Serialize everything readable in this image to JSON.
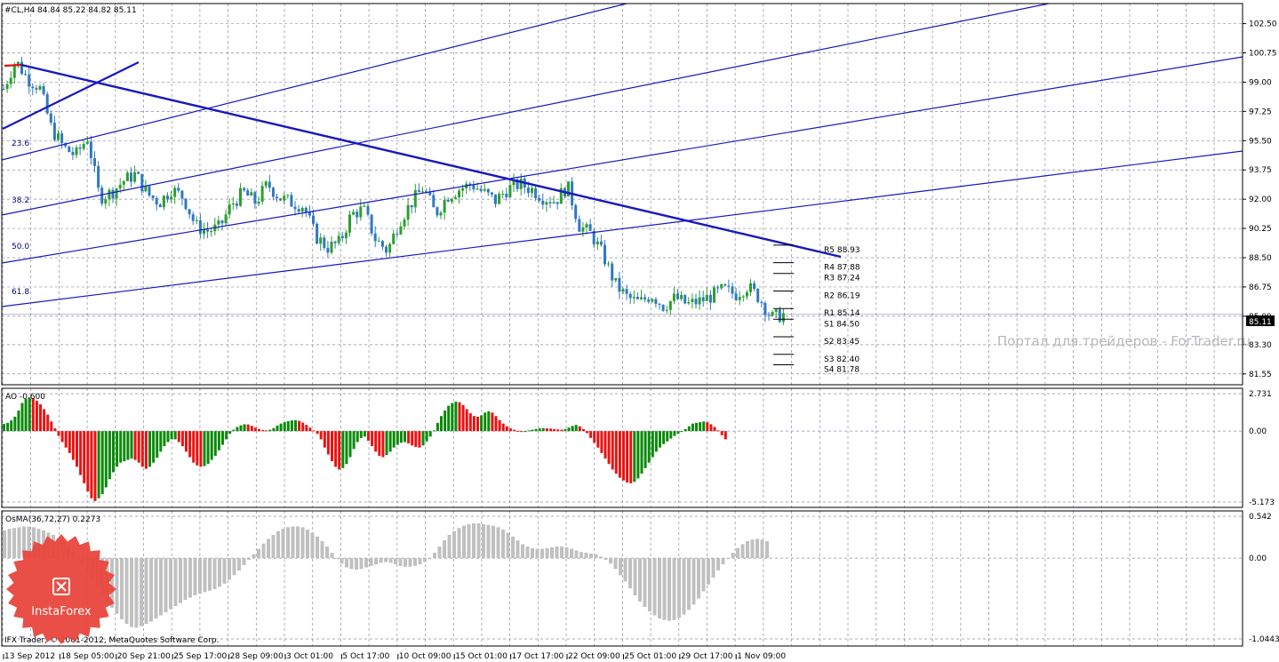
{
  "header": {
    "symbol_label": "#CL,H4  84.84 85.22 84.82 85.11",
    "ao_label": "AO -0.600",
    "osma_label": "OsMA(36,72,27) 0.2273",
    "copyright": "IFX Trader,  © 2001-2012, MetaQuotes Software Corp.",
    "watermark": "Портал для трейдеров - ForTrader.ru",
    "logo_text": "InstaForex"
  },
  "colors": {
    "grid": "#8a8aa8",
    "bull": "#2e9e2e",
    "bear": "#2f78c4",
    "trend": "#1818c0",
    "up_bar": "#0a8a0a",
    "down_bar": "#ee1010",
    "osma": "#c0c0c0",
    "logo": "#e8463c"
  },
  "chart_data": [
    {
      "type": "candlestick",
      "title": "#CL,H4",
      "ohlc_current": {
        "open": 84.84,
        "high": 85.22,
        "low": 84.82,
        "close": 85.11
      },
      "current_price_label": "85.11",
      "y_ticks": [
        "102.50",
        "100.75",
        "99.00",
        "97.25",
        "95.50",
        "93.75",
        "92.00",
        "90.25",
        "88.50",
        "86.75",
        "85.00",
        "83.30",
        "81.55"
      ],
      "x_ticks": [
        "13 Sep 2012",
        "18 Sep 05:00",
        "20 Sep 21:00",
        "25 Sep 17:00",
        "28 Sep 09:00",
        "3 Oct 01:00",
        "5 Oct 17:00",
        "10 Oct 09:00",
        "15 Oct 01:00",
        "17 Oct 17:00",
        "22 Oct 09:00",
        "25 Oct 01:00",
        "29 Oct 17:00",
        "1 Nov 09:00"
      ],
      "ylim": [
        80.9,
        103.7
      ],
      "fib_levels": [
        "23.6",
        "38.2",
        "50.0",
        "61.8"
      ],
      "pivots": [
        {
          "label": "R5 88.93",
          "value": 88.93
        },
        {
          "label": "R4 87.88",
          "value": 87.88
        },
        {
          "label": "R3 87.24",
          "value": 87.24
        },
        {
          "label": "R2 86.19",
          "value": 86.19
        },
        {
          "label": "R1 85.14",
          "value": 85.14
        },
        {
          "label": "S1 84.50",
          "value": 84.5
        },
        {
          "label": "S2 83.45",
          "value": 83.45
        },
        {
          "label": "S3 82.40",
          "value": 82.4
        },
        {
          "label": "S4 81.78",
          "value": 81.78
        }
      ],
      "close_path": [
        98.6,
        100.3,
        99.2,
        98.7,
        96.2,
        95.1,
        94.6,
        95.7,
        92.1,
        92.4,
        93.1,
        93.5,
        92.3,
        91.8,
        92.6,
        92.1,
        90.4,
        90.1,
        90.3,
        91.7,
        92.4,
        91.8,
        92.9,
        92.1,
        91.8,
        91.6,
        89.8,
        89.1,
        89.4,
        91.1,
        91.4,
        89.6,
        88.9,
        90.7,
        91.8,
        92.7,
        91.1,
        92.2,
        92.6,
        92.9,
        92.4,
        91.9,
        92.6,
        92.9,
        92.6,
        92.1,
        91.9,
        92.8,
        90.4,
        89.9,
        88.6,
        86.9,
        86.1,
        85.8,
        86.3,
        85.6,
        86.1,
        85.7,
        85.9,
        86.2,
        86.6,
        86.3,
        86.8,
        86.1,
        84.9,
        85.11
      ]
    },
    {
      "type": "bar",
      "title": "AO",
      "y_ticks": [
        "2.731",
        "0.00",
        "-5.173"
      ],
      "ylim": [
        -5.173,
        2.731
      ],
      "values": [
        0.52,
        0.6,
        0.78,
        1.05,
        1.5,
        2.05,
        2.35,
        2.45,
        2.4,
        2.2,
        1.95,
        1.6,
        1.2,
        0.7,
        0.2,
        -0.35,
        -0.8,
        -1.2,
        -1.6,
        -2.1,
        -2.6,
        -3.2,
        -3.8,
        -4.4,
        -4.9,
        -5.1,
        -4.9,
        -4.6,
        -4.1,
        -3.5,
        -3.0,
        -2.6,
        -2.3,
        -2.2,
        -2.1,
        -2.0,
        -2.1,
        -2.3,
        -2.6,
        -2.75,
        -2.6,
        -2.3,
        -1.95,
        -1.5,
        -1.1,
        -0.8,
        -0.6,
        -0.6,
        -0.8,
        -1.1,
        -1.5,
        -1.9,
        -2.3,
        -2.5,
        -2.6,
        -2.55,
        -2.4,
        -2.1,
        -1.8,
        -1.4,
        -1.0,
        -0.6,
        -0.2,
        0.1,
        0.3,
        0.42,
        0.5,
        0.48,
        0.38,
        0.25,
        0.15,
        0.08,
        0.05,
        0.1,
        0.22,
        0.4,
        0.55,
        0.65,
        0.72,
        0.78,
        0.8,
        0.75,
        0.62,
        0.45,
        0.25,
        0.05,
        -0.2,
        -0.6,
        -1.2,
        -1.7,
        -2.2,
        -2.6,
        -2.8,
        -2.7,
        -2.4,
        -1.9,
        -1.3,
        -0.8,
        -0.5,
        -0.4,
        -0.7,
        -1.1,
        -1.5,
        -1.8,
        -1.9,
        -1.75,
        -1.5,
        -1.2,
        -1.0,
        -0.85,
        -0.8,
        -0.9,
        -1.05,
        -1.15,
        -1.2,
        -1.05,
        -0.75,
        -0.4,
        0.05,
        0.6,
        1.1,
        1.5,
        1.85,
        2.05,
        2.15,
        2.1,
        1.9,
        1.6,
        1.3,
        1.1,
        1.05,
        1.15,
        1.35,
        1.45,
        1.35,
        1.1,
        0.8,
        0.55,
        0.35,
        0.2,
        0.1,
        0.02,
        -0.02,
        0.0,
        0.05,
        0.1,
        0.15,
        0.2,
        0.22,
        0.2,
        0.18,
        0.15,
        0.12,
        0.1,
        0.15,
        0.25,
        0.38,
        0.45,
        0.35,
        0.15,
        -0.15,
        -0.5,
        -0.85,
        -1.2,
        -1.6,
        -2.0,
        -2.4,
        -2.8,
        -3.1,
        -3.4,
        -3.6,
        -3.75,
        -3.8,
        -3.7,
        -3.45,
        -3.1,
        -2.7,
        -2.3,
        -1.9,
        -1.5,
        -1.2,
        -0.95,
        -0.75,
        -0.55,
        -0.35,
        -0.2,
        -0.05,
        0.15,
        0.35,
        0.55,
        0.6,
        0.65,
        0.7,
        0.65,
        0.5,
        0.3,
        0.05,
        -0.3,
        -0.6
      ]
    },
    {
      "type": "bar",
      "title": "OsMA(36,72,27)",
      "y_ticks": [
        "0.542",
        "0.00",
        "-1.0443"
      ],
      "ylim": [
        -1.0443,
        0.542
      ],
      "values": [
        0.36,
        0.38,
        0.39,
        0.4,
        0.41,
        0.41,
        0.4,
        0.38,
        0.36,
        0.33,
        0.3,
        0.26,
        0.21,
        0.15,
        0.08,
        0.0,
        -0.08,
        -0.17,
        -0.27,
        -0.37,
        -0.47,
        -0.56,
        -0.64,
        -0.72,
        -0.79,
        -0.85,
        -0.89,
        -0.9,
        -0.88,
        -0.85,
        -0.82,
        -0.78,
        -0.74,
        -0.7,
        -0.66,
        -0.62,
        -0.58,
        -0.54,
        -0.51,
        -0.48,
        -0.46,
        -0.44,
        -0.42,
        -0.4,
        -0.37,
        -0.33,
        -0.28,
        -0.22,
        -0.16,
        -0.09,
        -0.02,
        0.05,
        0.12,
        0.19,
        0.25,
        0.3,
        0.35,
        0.38,
        0.4,
        0.41,
        0.41,
        0.4,
        0.37,
        0.33,
        0.28,
        0.22,
        0.15,
        0.07,
        0.0,
        -0.07,
        -0.12,
        -0.14,
        -0.15,
        -0.14,
        -0.12,
        -0.1,
        -0.08,
        -0.06,
        -0.05,
        -0.06,
        -0.08,
        -0.1,
        -0.11,
        -0.11,
        -0.1,
        -0.08,
        -0.05,
        0.0,
        0.07,
        0.15,
        0.23,
        0.3,
        0.35,
        0.39,
        0.42,
        0.44,
        0.45,
        0.45,
        0.44,
        0.43,
        0.42,
        0.4,
        0.37,
        0.33,
        0.28,
        0.23,
        0.18,
        0.15,
        0.13,
        0.12,
        0.12,
        0.13,
        0.14,
        0.15,
        0.15,
        0.14,
        0.12,
        0.1,
        0.08,
        0.07,
        0.06,
        0.05,
        0.02,
        -0.02,
        -0.07,
        -0.14,
        -0.22,
        -0.3,
        -0.39,
        -0.48,
        -0.56,
        -0.63,
        -0.69,
        -0.74,
        -0.78,
        -0.8,
        -0.81,
        -0.8,
        -0.77,
        -0.73,
        -0.67,
        -0.6,
        -0.52,
        -0.43,
        -0.34,
        -0.25,
        -0.16,
        -0.08,
        0.0,
        0.07,
        0.13,
        0.18,
        0.22,
        0.24,
        0.25,
        0.24,
        0.22
      ]
    }
  ]
}
